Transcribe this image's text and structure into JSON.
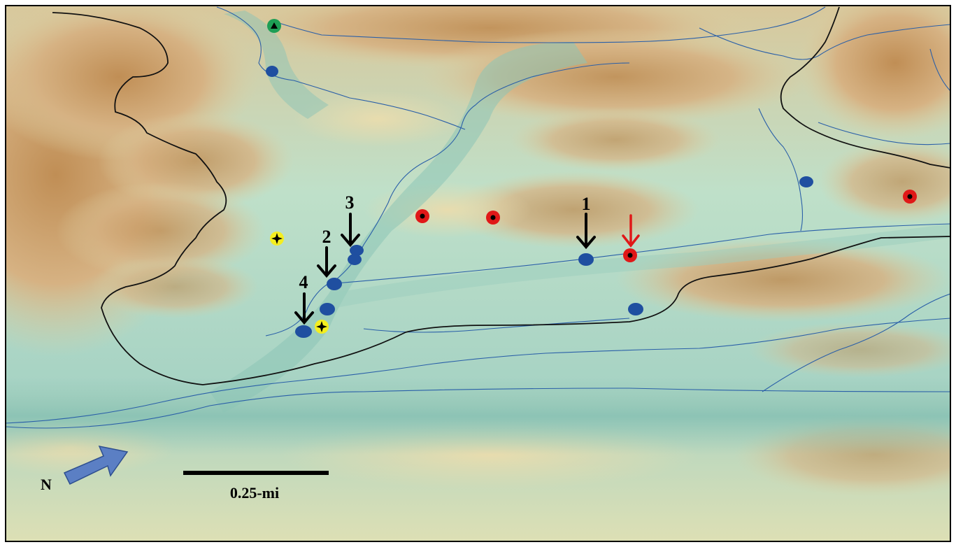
{
  "map": {
    "frame_color": "#000000",
    "palette": {
      "valley": "#8fc7b8",
      "slope": "#d8dcb0",
      "ridge": "#c79a63",
      "stream": "#2a5fa8",
      "boundary": "#111111"
    },
    "north_arrow": {
      "label": "N",
      "icon": "north-arrow-icon",
      "color": "#5b7fc4"
    },
    "scale_bar": {
      "label": "0.25-mi"
    },
    "arrow_labels": [
      {
        "id": "1",
        "text": "1",
        "color": "#000000"
      },
      {
        "id": "2",
        "text": "2",
        "color": "#000000"
      },
      {
        "id": "3",
        "text": "3",
        "color": "#000000"
      },
      {
        "id": "4",
        "text": "4",
        "color": "#000000"
      },
      {
        "id": "red",
        "text": "",
        "color": "#e01818"
      }
    ],
    "markers": {
      "blue_dot": {
        "icon": "blue-dot-icon",
        "color": "#1f4fa0"
      },
      "red_target": {
        "icon": "red-target-icon",
        "color": "#e01818"
      },
      "yellow_star": {
        "icon": "yellow-star-icon",
        "color": "#f4ee20"
      },
      "green_triangle": {
        "icon": "green-triangle-icon",
        "color": "#1e9e55"
      }
    }
  }
}
